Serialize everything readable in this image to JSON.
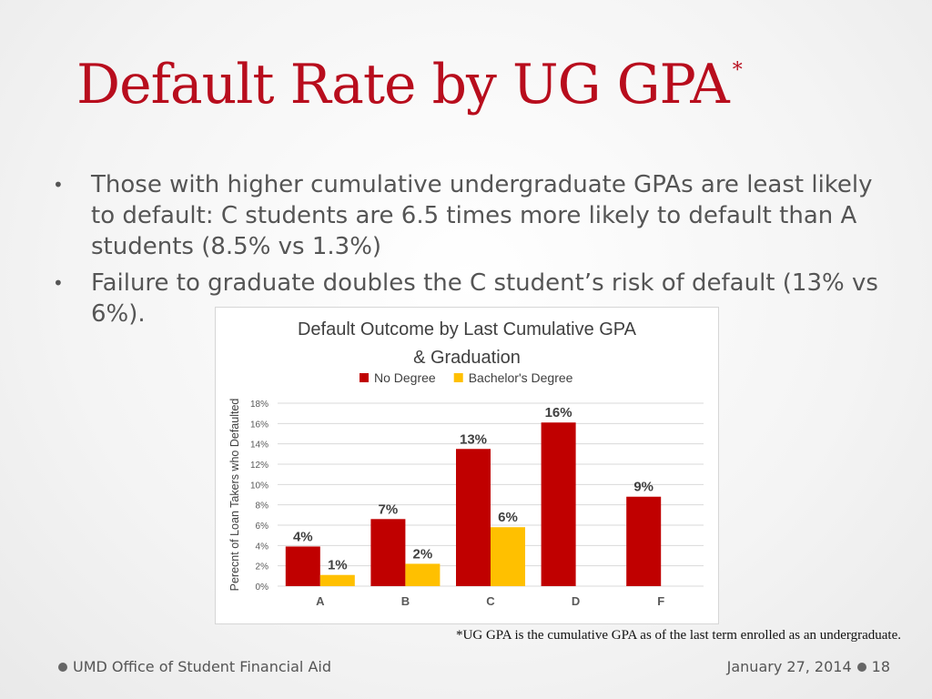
{
  "slide": {
    "title": "Default Rate by UG GPA",
    "title_mark": "*",
    "bullets": [
      "Those with higher cumulative undergraduate GPAs are least likely to default: C students are 6.5 times more likely to default than A students (8.5% vs 1.3%)",
      "Failure to graduate doubles the C student’s risk of default (13% vs 6%)."
    ],
    "footnote": "*UG GPA is the cumulative GPA as of the last term enrolled as an undergraduate.",
    "footer_left": "UMD Office of Student Financial Aid",
    "footer_date": "January 27, 2014",
    "page_number": "18"
  },
  "colors": {
    "title": "#b80d1d",
    "no_degree": "#c00000",
    "bachelors": "#ffc000"
  },
  "chart_data": {
    "type": "bar",
    "title_lines": [
      "Default Outcome by Last Cumulative GPA",
      "& Graduation"
    ],
    "ylabel": "Perecnt of Loan Takers who Defaulted",
    "xlabel": "",
    "categories": [
      "A",
      "B",
      "C",
      "D",
      "F"
    ],
    "ylim": [
      0,
      18
    ],
    "ytick_labels": [
      "0%",
      "2%",
      "4%",
      "6%",
      "8%",
      "10%",
      "12%",
      "14%",
      "16%",
      "18%"
    ],
    "grid": true,
    "legend": "top",
    "series": [
      {
        "name": "No Degree",
        "color": "#c00000",
        "values": [
          3.9,
          6.6,
          13.5,
          16.1,
          8.8
        ],
        "labels": [
          "4%",
          "7%",
          "13%",
          "16%",
          "9%"
        ]
      },
      {
        "name": "Bachelor's Degree",
        "color": "#ffc000",
        "values": [
          1.1,
          2.2,
          5.8,
          null,
          null
        ],
        "labels": [
          "1%",
          "2%",
          "6%",
          null,
          null
        ]
      }
    ]
  }
}
